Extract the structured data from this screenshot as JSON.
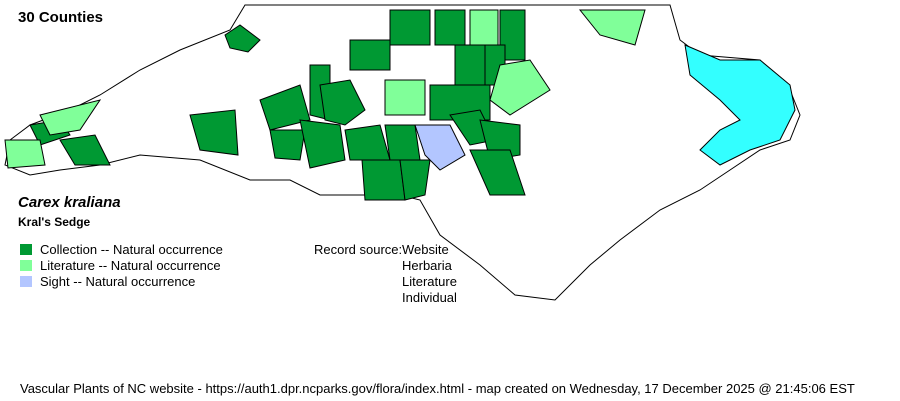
{
  "county_count": "30 Counties",
  "species": {
    "scientific": "Carex kraliana",
    "common": "Kral's Sedge"
  },
  "legend": [
    {
      "label": "Collection -- Natural occurrence",
      "color": "#009933"
    },
    {
      "label": "Literature -- Natural occurrence",
      "color": "#80ff99"
    },
    {
      "label": "Sight -- Natural occurrence",
      "color": "#b3c6ff"
    }
  ],
  "record_source": {
    "label": "Record source:",
    "values": [
      "Website",
      "Herbaria",
      "Literature",
      "Individual"
    ]
  },
  "water_color": "#33ffff",
  "footer": "Vascular Plants of NC website - https://auth1.dpr.ncparks.gov/flora/index.html - map created on Wednesday, 17 December 2025 @ 21:45:06 EST"
}
